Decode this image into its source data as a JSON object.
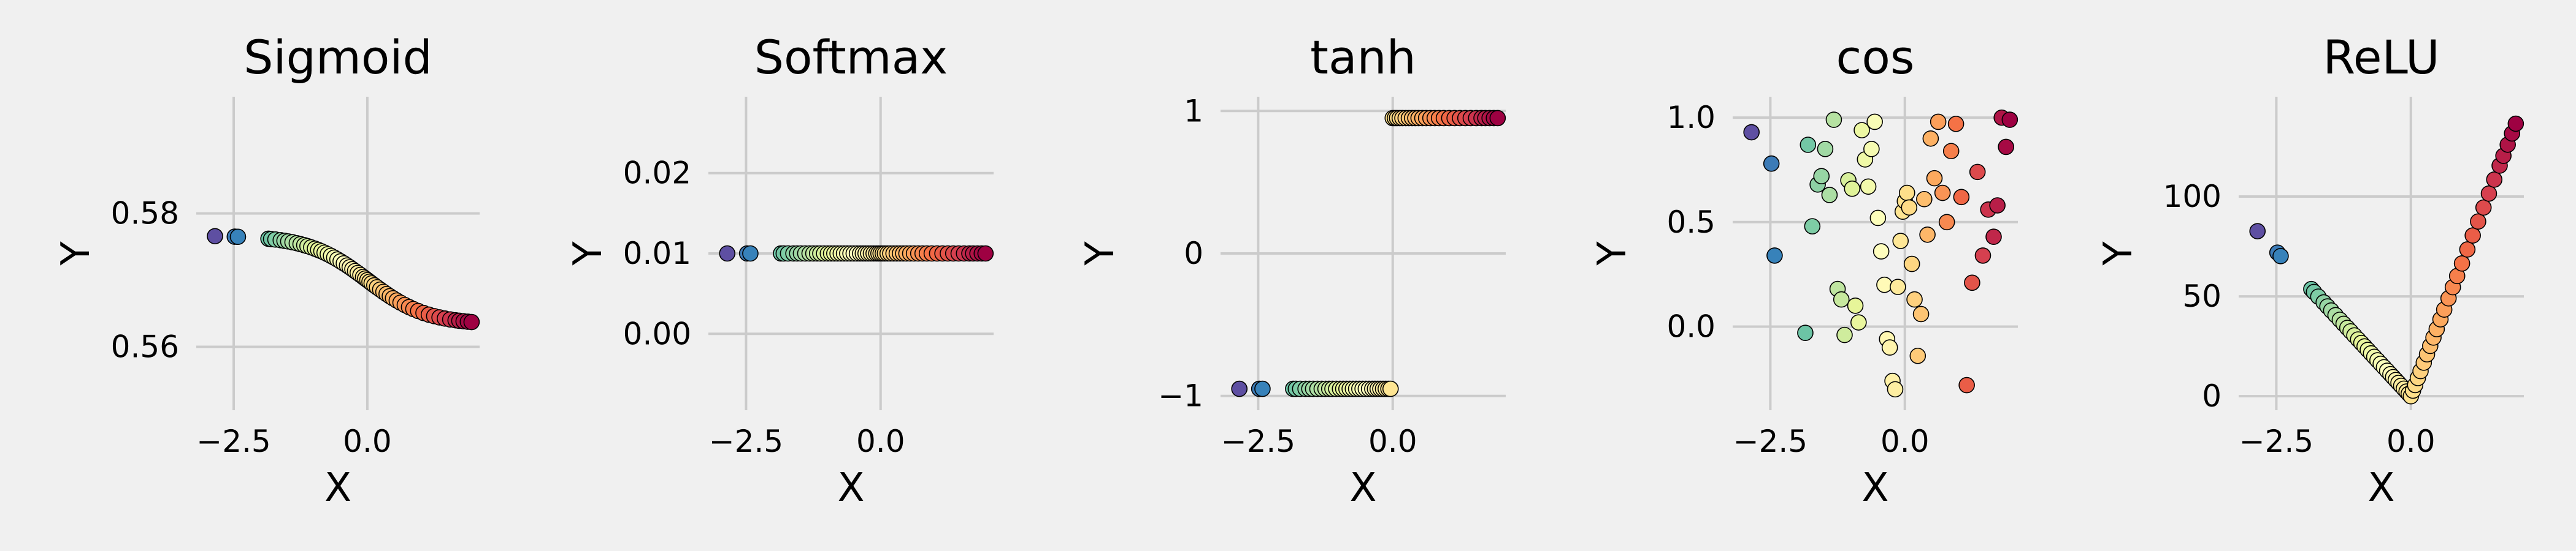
{
  "chart_data": [
    {
      "type": "scatter",
      "title": "Sigmoid",
      "xlabel": "X",
      "ylabel": "Y",
      "xlim": [
        -3.2,
        2.1
      ],
      "ylim": [
        0.5505,
        0.5975
      ],
      "xticks": [
        -2.5,
        0.0
      ],
      "xtick_labels": [
        "−2.5",
        "0.0"
      ],
      "yticks": [
        0.56,
        0.58
      ],
      "ytick_labels": [
        "0.56",
        "0.58"
      ],
      "fn": "sigmoid"
    },
    {
      "type": "scatter",
      "title": "Softmax",
      "xlabel": "X",
      "ylabel": "Y",
      "xlim": [
        -3.2,
        2.1
      ],
      "ylim": [
        -0.0095,
        0.0295
      ],
      "xticks": [
        -2.5,
        0.0
      ],
      "xtick_labels": [
        "−2.5",
        "0.0"
      ],
      "yticks": [
        0.0,
        0.01,
        0.02
      ],
      "ytick_labels": [
        "0.00",
        "0.01",
        "0.02"
      ],
      "fn": "softmax"
    },
    {
      "type": "scatter",
      "title": "tanh",
      "xlabel": "X",
      "ylabel": "Y",
      "xlim": [
        -3.2,
        2.1
      ],
      "ylim": [
        -1.1,
        1.1
      ],
      "xticks": [
        -2.5,
        0.0
      ],
      "xtick_labels": [
        "−2.5",
        "0.0"
      ],
      "yticks": [
        -1,
        0,
        1
      ],
      "ytick_labels": [
        "−1",
        "0",
        "1"
      ],
      "fn": "tanh"
    },
    {
      "type": "scatter",
      "title": "cos",
      "xlabel": "X",
      "ylabel": "Y",
      "xlim": [
        -3.2,
        2.1
      ],
      "ylim": [
        -0.4,
        1.1
      ],
      "xticks": [
        -2.5,
        0.0
      ],
      "xtick_labels": [
        "−2.5",
        "0.0"
      ],
      "yticks": [
        0.0,
        0.5,
        1.0
      ],
      "ytick_labels": [
        "0.0",
        "0.5",
        "1.0"
      ],
      "fn": "cos"
    },
    {
      "type": "scatter",
      "title": "ReLU",
      "xlabel": "X",
      "ylabel": "Y",
      "xlim": [
        -3.2,
        2.1
      ],
      "ylim": [
        -7,
        150
      ],
      "xticks": [
        -2.5,
        0.0
      ],
      "xtick_labels": [
        "−2.5",
        "0.0"
      ],
      "yticks": [
        0,
        50,
        100
      ],
      "ytick_labels": [
        "0",
        "50",
        "100"
      ],
      "fn": "relu"
    }
  ],
  "x_values": [
    -2.85,
    -2.48,
    -2.42,
    -1.85,
    -1.8,
    -1.72,
    -1.62,
    -1.55,
    -1.48,
    -1.4,
    -1.32,
    -1.25,
    -1.18,
    -1.12,
    -1.05,
    -0.98,
    -0.92,
    -0.86,
    -0.8,
    -0.74,
    -0.68,
    -0.62,
    -0.56,
    -0.5,
    -0.44,
    -0.38,
    -0.33,
    -0.28,
    -0.23,
    -0.18,
    -0.13,
    -0.08,
    -0.04,
    0.0,
    0.04,
    0.08,
    0.13,
    0.18,
    0.24,
    0.3,
    0.36,
    0.42,
    0.48,
    0.55,
    0.62,
    0.7,
    0.78,
    0.86,
    0.95,
    1.05,
    1.15,
    1.25,
    1.35,
    1.45,
    1.55,
    1.65,
    1.72,
    1.8,
    1.88,
    1.95
  ],
  "cos_y": [
    0.93,
    0.78,
    0.34,
    -0.03,
    0.87,
    0.48,
    0.68,
    0.72,
    0.85,
    0.63,
    0.99,
    0.18,
    0.13,
    -0.04,
    0.7,
    0.66,
    0.1,
    0.02,
    0.94,
    0.8,
    0.67,
    0.85,
    0.98,
    0.52,
    0.36,
    0.2,
    -0.06,
    -0.1,
    -0.26,
    -0.3,
    0.19,
    0.41,
    0.55,
    0.6,
    0.64,
    0.57,
    0.3,
    0.13,
    -0.14,
    0.06,
    0.61,
    0.44,
    0.9,
    0.71,
    0.98,
    0.64,
    0.5,
    0.84,
    0.97,
    0.62,
    -0.28,
    0.21,
    0.74,
    0.34,
    0.56,
    0.43,
    0.58,
    1.0,
    0.86,
    0.99
  ]
}
